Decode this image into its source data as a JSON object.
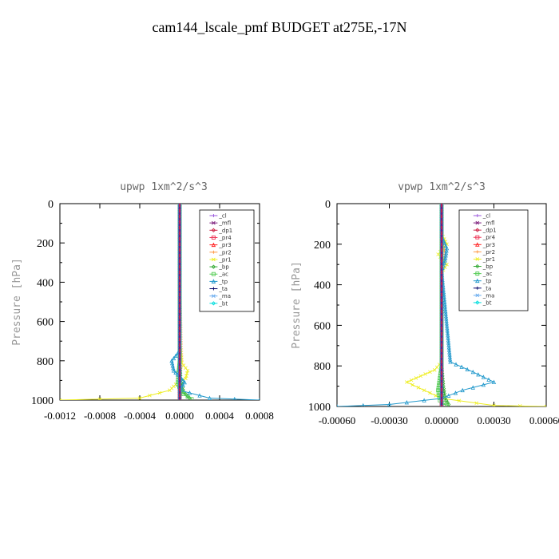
{
  "title": "cam144_lscale_pmf  BUDGET at275E,-17N",
  "chart_data": [
    {
      "type": "line",
      "title": "upwp  1xm^2/s^3",
      "ylabel": "Pressure [hPa]",
      "xlim": [
        -0.0012,
        0.0008
      ],
      "ylim": [
        1000,
        0
      ],
      "yticks": [
        0,
        200,
        400,
        600,
        800,
        1000
      ],
      "ytick_labels": [
        "0",
        "200",
        "400",
        "600",
        "800",
        "1000"
      ],
      "xtick_labels": [
        "-0.0012",
        "-0.0008",
        "-0.0004",
        "0.0000",
        "0.0004",
        "0.0008"
      ],
      "xticks": [
        -0.0012,
        -0.0008,
        -0.0004,
        0.0,
        0.0004,
        0.0008
      ],
      "legend": [
        "_cl",
        "_mfl",
        "_dp1",
        "_pr4",
        "_pr3",
        "_pr2",
        "_pr1",
        "_bp",
        "_ac",
        "_tp",
        "_ta",
        "_ma",
        "_bt"
      ],
      "series": [
        {
          "name": "_cl",
          "color": "#9955dd",
          "x": [
            0,
            0,
            0,
            0,
            0,
            0
          ],
          "y": [
            0,
            200,
            400,
            600,
            800,
            1000
          ]
        },
        {
          "name": "_mfl",
          "color": "#7a1a7a",
          "x": [
            0,
            0,
            0,
            0,
            0,
            0
          ],
          "y": [
            0,
            200,
            400,
            600,
            800,
            1000
          ]
        },
        {
          "name": "_dp1",
          "color": "#cc2244",
          "x": [
            0,
            0,
            0,
            0,
            0,
            0,
            0,
            0
          ],
          "y": [
            0,
            150,
            300,
            450,
            600,
            750,
            900,
            1000
          ]
        },
        {
          "name": "_pr4",
          "color": "#ee3355",
          "x": [
            0,
            0,
            0,
            0
          ],
          "y": [
            0,
            300,
            700,
            1000
          ]
        },
        {
          "name": "_pr3",
          "color": "#ff2222",
          "x": [
            0,
            0,
            0,
            0
          ],
          "y": [
            0,
            300,
            700,
            1000
          ]
        },
        {
          "name": "_pr2",
          "color": "#ff9944",
          "x": [
            0,
            0,
            0,
            2e-05,
            0,
            0
          ],
          "y": [
            0,
            200,
            400,
            800,
            900,
            1000
          ]
        },
        {
          "name": "_pr1",
          "color": "#eeee22",
          "x": [
            0,
            0,
            2e-05,
            8e-05,
            6e-05,
            -4e-05,
            -0.0001,
            -0.0004,
            -0.0012
          ],
          "y": [
            0,
            700,
            810,
            850,
            890,
            920,
            950,
            990,
            1000
          ]
        },
        {
          "name": "_bp",
          "color": "#33aa33",
          "x": [
            0,
            0,
            1e-05,
            4e-05,
            0.0001
          ],
          "y": [
            0,
            800,
            900,
            960,
            990
          ]
        },
        {
          "name": "_ac",
          "color": "#55cc55",
          "x": [
            0,
            0,
            -2e-05,
            4e-05,
            0.00012
          ],
          "y": [
            0,
            800,
            920,
            970,
            995
          ]
        },
        {
          "name": "_tp",
          "color": "#2299cc",
          "x": [
            0,
            0,
            -8e-05,
            -6e-05,
            0.0,
            5e-05,
            0.0,
            0.0003,
            0.0008
          ],
          "y": [
            0,
            750,
            800,
            850,
            880,
            910,
            950,
            990,
            1000
          ]
        },
        {
          "name": "_ta",
          "color": "#000066",
          "x": [
            0,
            0,
            0,
            0
          ],
          "y": [
            0,
            400,
            800,
            1000
          ]
        },
        {
          "name": "_ma",
          "color": "#66aaee",
          "x": [
            0,
            0,
            0,
            0
          ],
          "y": [
            0,
            400,
            800,
            1000
          ]
        },
        {
          "name": "_bt",
          "color": "#00dddd",
          "x": [
            0,
            0,
            0,
            0
          ],
          "y": [
            0,
            400,
            800,
            1000
          ]
        }
      ]
    },
    {
      "type": "line",
      "title": "vpwp  1xm^2/s^3",
      "ylabel": "Pressure [hPa]",
      "xlim": [
        -0.0006,
        0.0006
      ],
      "ylim": [
        1000,
        0
      ],
      "yticks": [
        0,
        200,
        400,
        600,
        800,
        1000
      ],
      "ytick_labels": [
        "0",
        "200",
        "400",
        "600",
        "800",
        "1000"
      ],
      "xtick_labels": [
        "-0.00060",
        "-0.00030",
        "0.00000",
        "0.00030",
        "0.00060"
      ],
      "xticks": [
        -0.0006,
        -0.0003,
        0.0,
        0.0003,
        0.0006
      ],
      "legend": [
        "_cl",
        "_mfl",
        "_dp1",
        "_pr4",
        "_pr3",
        "_pr2",
        "_pr1",
        "_bp",
        "_ac",
        "_tp",
        "_ta",
        "_ma",
        "_bt"
      ],
      "series": [
        {
          "name": "_cl",
          "color": "#9955dd",
          "x": [
            0,
            0,
            0,
            0,
            0,
            0
          ],
          "y": [
            0,
            200,
            400,
            600,
            800,
            1000
          ]
        },
        {
          "name": "_mfl",
          "color": "#7a1a7a",
          "x": [
            0,
            0,
            0,
            0,
            0,
            0
          ],
          "y": [
            0,
            200,
            400,
            600,
            800,
            1000
          ]
        },
        {
          "name": "_dp1",
          "color": "#cc2244",
          "x": [
            0,
            0,
            0,
            0,
            0,
            0,
            0,
            0
          ],
          "y": [
            0,
            150,
            300,
            450,
            600,
            750,
            900,
            1000
          ]
        },
        {
          "name": "_pr4",
          "color": "#ee3355",
          "x": [
            0,
            0,
            0,
            0
          ],
          "y": [
            0,
            300,
            700,
            1000
          ]
        },
        {
          "name": "_pr3",
          "color": "#ff2222",
          "x": [
            0,
            0,
            0,
            0
          ],
          "y": [
            0,
            300,
            700,
            1000
          ]
        },
        {
          "name": "_pr2",
          "color": "#ff9944",
          "x": [
            0,
            0,
            2e-05,
            0,
            0
          ],
          "y": [
            0,
            150,
            250,
            340,
            1000
          ]
        },
        {
          "name": "_pr1",
          "color": "#eeee22",
          "x": [
            0,
            0,
            3e-05,
            -2e-05,
            3e-05,
            0,
            0,
            -4e-05,
            -0.00012,
            -0.0002,
            -0.0001,
            0.0,
            0.0003,
            0.0006
          ],
          "y": [
            0,
            150,
            200,
            250,
            300,
            340,
            780,
            820,
            850,
            880,
            920,
            960,
            995,
            1000
          ]
        },
        {
          "name": "_bp",
          "color": "#33aa33",
          "x": [
            0,
            0,
            1e-05,
            2e-05,
            4e-05
          ],
          "y": [
            0,
            800,
            900,
            960,
            990
          ]
        },
        {
          "name": "_ac",
          "color": "#55cc55",
          "x": [
            0,
            0,
            -2e-05,
            -1e-05,
            3e-05
          ],
          "y": [
            0,
            800,
            920,
            970,
            995
          ]
        },
        {
          "name": "_tp",
          "color": "#2299cc",
          "x": [
            0,
            0,
            3e-05,
            2e-05,
            0,
            5e-05,
            0.00018,
            0.0003,
            0.00012,
            0.0,
            -0.0003,
            -0.0006
          ],
          "y": [
            0,
            160,
            220,
            280,
            330,
            780,
            830,
            880,
            920,
            960,
            990,
            1000
          ]
        },
        {
          "name": "_ta",
          "color": "#000066",
          "x": [
            0,
            0,
            0,
            0
          ],
          "y": [
            0,
            400,
            800,
            1000
          ]
        },
        {
          "name": "_ma",
          "color": "#66aaee",
          "x": [
            0,
            0,
            0,
            0
          ],
          "y": [
            0,
            400,
            800,
            1000
          ]
        },
        {
          "name": "_bt",
          "color": "#00dddd",
          "x": [
            0,
            0,
            0,
            0
          ],
          "y": [
            0,
            400,
            800,
            1000
          ]
        }
      ]
    }
  ]
}
